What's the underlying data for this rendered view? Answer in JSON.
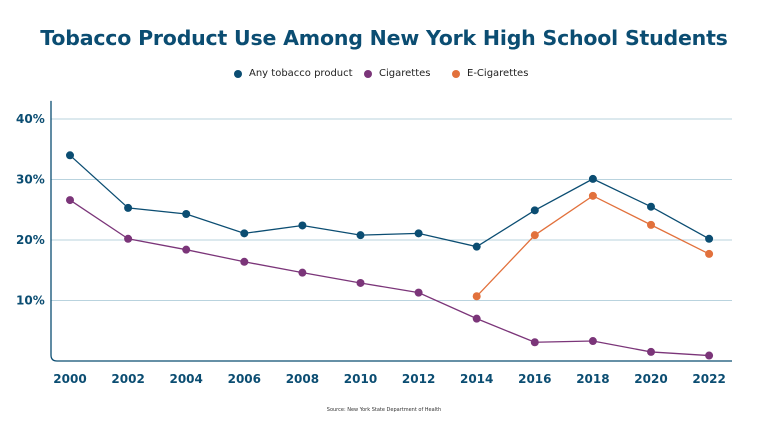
{
  "chart_data": {
    "type": "line",
    "title": "Tobacco Product Use Among New York High School Students",
    "xlabel": "",
    "ylabel": "",
    "categories": [
      "2000",
      "2002",
      "2004",
      "2006",
      "2008",
      "2010",
      "2012",
      "2014",
      "2016",
      "2018",
      "2020",
      "2022"
    ],
    "ylim": [
      0,
      43
    ],
    "yticks": [
      10,
      20,
      30,
      40
    ],
    "ytick_labels": [
      "10%",
      "20%",
      "30%",
      "40%"
    ],
    "grid": true,
    "legend_position": "top-center",
    "series": [
      {
        "name": "Any tobacco product",
        "color": "#0b4d72",
        "values": [
          34.0,
          25.3,
          24.3,
          21.1,
          22.4,
          20.8,
          21.1,
          18.9,
          24.9,
          30.1,
          25.5,
          20.2
        ]
      },
      {
        "name": "Cigarettes",
        "color": "#7b3579",
        "values": [
          26.6,
          20.2,
          18.4,
          16.4,
          14.6,
          12.9,
          11.3,
          7.0,
          3.1,
          3.3,
          1.5,
          0.9
        ]
      },
      {
        "name": "E-Cigarettes",
        "color": "#e2713c",
        "values": [
          null,
          null,
          null,
          null,
          null,
          null,
          null,
          10.7,
          20.8,
          27.3,
          22.5,
          17.7
        ]
      }
    ],
    "source": "Source: New York State Department of Health"
  },
  "colors": {
    "axis": "#0b4d72",
    "grid": "#b9d3de",
    "title": "#0b4d72"
  }
}
